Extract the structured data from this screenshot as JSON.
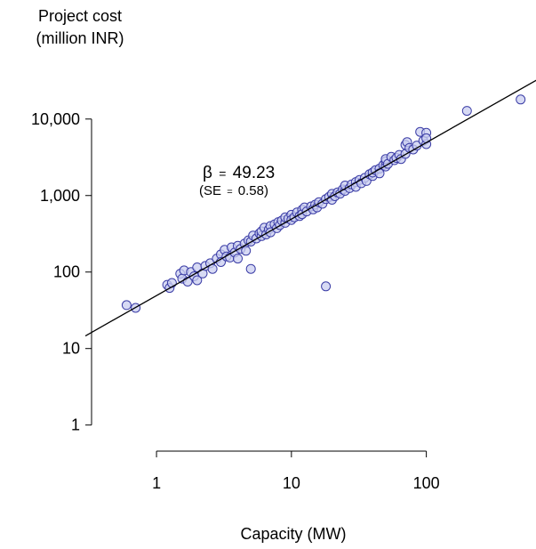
{
  "chart_data": {
    "type": "scatter",
    "title": "",
    "ylabel_lines": [
      "Project cost",
      "(million INR)"
    ],
    "xlabel": "Capacity (MW)",
    "x_scale": "log",
    "y_scale": "log",
    "xlim": [
      0.33,
      650
    ],
    "ylim": [
      0.7,
      35000
    ],
    "x_ticks": [
      1,
      10,
      100
    ],
    "x_tick_labels": [
      "1",
      "10",
      "100"
    ],
    "y_ticks": [
      1,
      10,
      100,
      1000,
      10000
    ],
    "y_tick_labels": [
      "1",
      "10",
      "100",
      "1,000",
      "10,000"
    ],
    "grid": false,
    "legend": "none",
    "annotation": {
      "beta_symbol": "β",
      "equals": "=",
      "beta_value": "49.23",
      "se_prefix": "(SE",
      "se_equals": "=",
      "se_value": "0.58)"
    },
    "fit_line": {
      "slope": 1,
      "intercept": 49.23
    },
    "colors": {
      "point_fill": "#c9cdf0",
      "point_stroke": "#3b3da6",
      "line": "#000000"
    },
    "series": [
      {
        "points": [
          [
            0.6,
            37
          ],
          [
            0.7,
            34
          ],
          [
            1.2,
            68
          ],
          [
            1.25,
            62
          ],
          [
            1.3,
            72
          ],
          [
            1.5,
            95
          ],
          [
            1.55,
            82
          ],
          [
            1.6,
            105
          ],
          [
            1.7,
            75
          ],
          [
            1.8,
            100
          ],
          [
            1.9,
            88
          ],
          [
            2.0,
            115
          ],
          [
            2.0,
            78
          ],
          [
            2.2,
            96
          ],
          [
            2.3,
            120
          ],
          [
            2.5,
            130
          ],
          [
            2.6,
            110
          ],
          [
            2.8,
            150
          ],
          [
            3.0,
            170
          ],
          [
            3.0,
            135
          ],
          [
            3.2,
            195
          ],
          [
            3.3,
            160
          ],
          [
            3.5,
            155
          ],
          [
            3.6,
            210
          ],
          [
            3.8,
            180
          ],
          [
            4.0,
            220
          ],
          [
            4.0,
            150
          ],
          [
            4.2,
            200
          ],
          [
            4.5,
            235
          ],
          [
            4.6,
            190
          ],
          [
            4.8,
            260
          ],
          [
            5.0,
            250
          ],
          [
            5.0,
            110
          ],
          [
            5.2,
            300
          ],
          [
            5.5,
            275
          ],
          [
            5.8,
            320
          ],
          [
            6.0,
            295
          ],
          [
            6.0,
            340
          ],
          [
            6.3,
            380
          ],
          [
            6.5,
            310
          ],
          [
            6.8,
            360
          ],
          [
            7.0,
            400
          ],
          [
            7.0,
            330
          ],
          [
            7.5,
            420
          ],
          [
            7.8,
            375
          ],
          [
            8.0,
            450
          ],
          [
            8.2,
            410
          ],
          [
            8.5,
            470
          ],
          [
            9.0,
            440
          ],
          [
            9.0,
            520
          ],
          [
            9.5,
            500
          ],
          [
            10.0,
            560
          ],
          [
            10.0,
            480
          ],
          [
            10.5,
            520
          ],
          [
            11.0,
            600
          ],
          [
            11.5,
            540
          ],
          [
            12.0,
            650
          ],
          [
            12.0,
            570
          ],
          [
            12.5,
            700
          ],
          [
            13.0,
            620
          ],
          [
            14.0,
            720
          ],
          [
            14.5,
            660
          ],
          [
            15.0,
            760
          ],
          [
            15.5,
            700
          ],
          [
            16.0,
            820
          ],
          [
            17.0,
            780
          ],
          [
            18.0,
            900
          ],
          [
            18.0,
            65
          ],
          [
            19.0,
            960
          ],
          [
            20.0,
            1050
          ],
          [
            20.0,
            880
          ],
          [
            21.0,
            980
          ],
          [
            22.0,
            1100
          ],
          [
            23.0,
            1060
          ],
          [
            24.0,
            1200
          ],
          [
            25.0,
            1150
          ],
          [
            25.0,
            1350
          ],
          [
            27.0,
            1250
          ],
          [
            28.0,
            1400
          ],
          [
            30.0,
            1500
          ],
          [
            30.0,
            1300
          ],
          [
            32.0,
            1600
          ],
          [
            33.0,
            1450
          ],
          [
            35.0,
            1700
          ],
          [
            36.0,
            1550
          ],
          [
            38.0,
            1900
          ],
          [
            40.0,
            1800
          ],
          [
            40.0,
            2000
          ],
          [
            42.0,
            2150
          ],
          [
            45.0,
            2250
          ],
          [
            45.0,
            1950
          ],
          [
            48.0,
            2500
          ],
          [
            50.0,
            2400
          ],
          [
            50.0,
            2800
          ],
          [
            50.0,
            3000
          ],
          [
            52.0,
            2600
          ],
          [
            55.0,
            3200
          ],
          [
            58.0,
            2900
          ],
          [
            60.0,
            3100
          ],
          [
            63.0,
            3400
          ],
          [
            65.0,
            3000
          ],
          [
            70.0,
            3500
          ],
          [
            70.0,
            4600
          ],
          [
            72.0,
            5000
          ],
          [
            75.0,
            4200
          ],
          [
            80.0,
            4000
          ],
          [
            85.0,
            4500
          ],
          [
            90.0,
            6800
          ],
          [
            95.0,
            5200
          ],
          [
            100.0,
            6600
          ],
          [
            100.0,
            4700
          ],
          [
            100.0,
            5600
          ],
          [
            200.0,
            12800
          ],
          [
            500.0,
            18000
          ]
        ]
      }
    ]
  }
}
